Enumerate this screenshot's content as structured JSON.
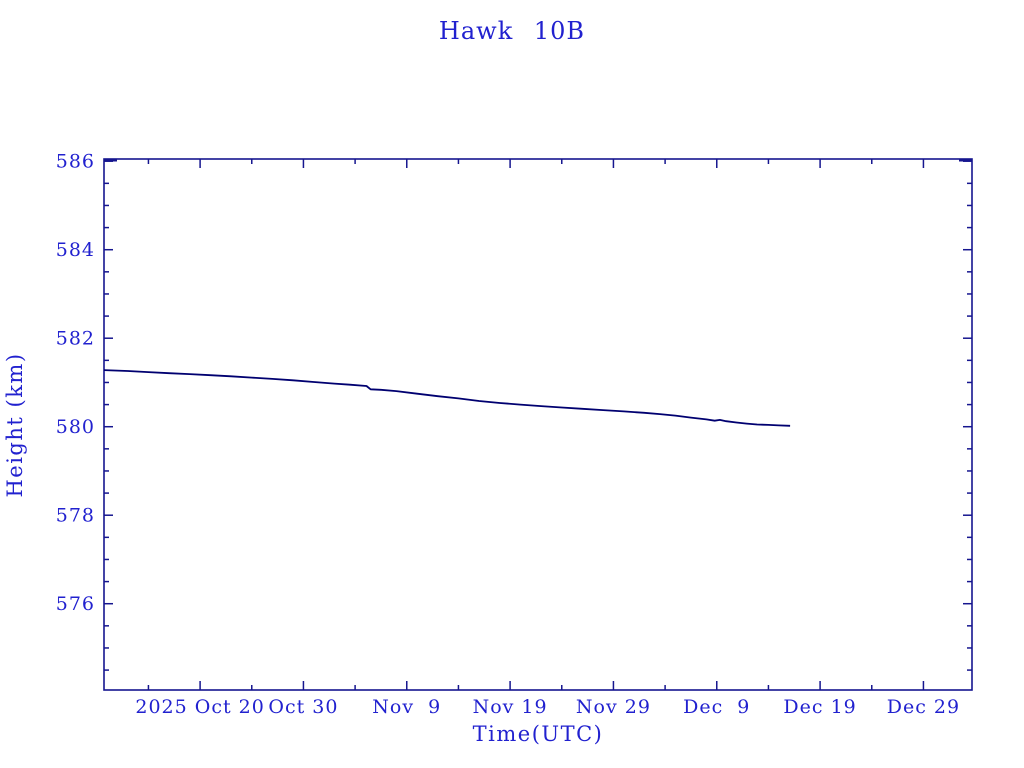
{
  "page": {
    "background": "#ffffff"
  },
  "chart_data": {
    "type": "line",
    "title": "Hawk 10B",
    "xlabel": "Time(UTC)",
    "ylabel": "Height (km)",
    "colors": {
      "text": "#2121cf",
      "frame": "#16168f",
      "line": "#000070",
      "background": "#ffffff"
    },
    "x_axis": {
      "unit": "days relative to 2025 Oct 20 (UTC)",
      "lim": [
        -9.3,
        74.7
      ],
      "major_ticks": [
        {
          "pos": 0,
          "label": "2025 Oct 20"
        },
        {
          "pos": 10,
          "label": "Oct 30"
        },
        {
          "pos": 20,
          "label": "Nov  9"
        },
        {
          "pos": 30,
          "label": "Nov 19"
        },
        {
          "pos": 40,
          "label": "Nov 29"
        },
        {
          "pos": 50,
          "label": "Dec  9"
        },
        {
          "pos": 60,
          "label": "Dec 19"
        },
        {
          "pos": 70,
          "label": "Dec 29"
        }
      ],
      "minor_ticks": [
        -5,
        5,
        15,
        25,
        35,
        45,
        55,
        65
      ]
    },
    "y_axis": {
      "lim": [
        574.05,
        586.05
      ],
      "major_ticks": [
        {
          "pos": 586,
          "label": "586"
        },
        {
          "pos": 584,
          "label": "584"
        },
        {
          "pos": 582,
          "label": "582"
        },
        {
          "pos": 580,
          "label": "580"
        },
        {
          "pos": 578,
          "label": "578"
        },
        {
          "pos": 576,
          "label": "576"
        }
      ],
      "minor_ticks": [
        574.5,
        575,
        575.5,
        576.5,
        577,
        577.5,
        578.5,
        579,
        579.5,
        580.5,
        581,
        581.5,
        582.5,
        583,
        583.5,
        584.5,
        585,
        585.5
      ]
    },
    "legend": null,
    "grid": false,
    "series": [
      {
        "name": "Hawk 10B orbital height",
        "points": [
          [
            -9.3,
            581.28
          ],
          [
            -7,
            581.26
          ],
          [
            -5,
            581.235
          ],
          [
            -3,
            581.21
          ],
          [
            -1,
            581.19
          ],
          [
            1,
            581.165
          ],
          [
            3,
            581.14
          ],
          [
            5,
            581.11
          ],
          [
            7,
            581.08
          ],
          [
            9,
            581.05
          ],
          [
            11,
            581.01
          ],
          [
            13,
            580.975
          ],
          [
            14.5,
            580.95
          ],
          [
            16.1,
            580.92
          ],
          [
            16.5,
            580.845
          ],
          [
            17.5,
            580.835
          ],
          [
            19,
            580.805
          ],
          [
            21,
            580.745
          ],
          [
            23,
            580.69
          ],
          [
            25,
            580.64
          ],
          [
            27,
            580.58
          ],
          [
            29,
            580.535
          ],
          [
            31,
            580.5
          ],
          [
            33,
            580.465
          ],
          [
            35,
            580.435
          ],
          [
            37,
            580.405
          ],
          [
            39,
            580.375
          ],
          [
            41,
            580.345
          ],
          [
            43,
            580.315
          ],
          [
            44.5,
            580.285
          ],
          [
            46,
            580.25
          ],
          [
            47.5,
            580.205
          ],
          [
            49,
            580.165
          ],
          [
            49.8,
            580.135
          ],
          [
            50.3,
            580.155
          ],
          [
            50.9,
            580.125
          ],
          [
            51.9,
            580.095
          ],
          [
            52.9,
            580.07
          ],
          [
            53.9,
            580.05
          ],
          [
            55,
            580.04
          ],
          [
            56,
            580.03
          ],
          [
            57.1,
            580.02
          ]
        ]
      }
    ]
  }
}
